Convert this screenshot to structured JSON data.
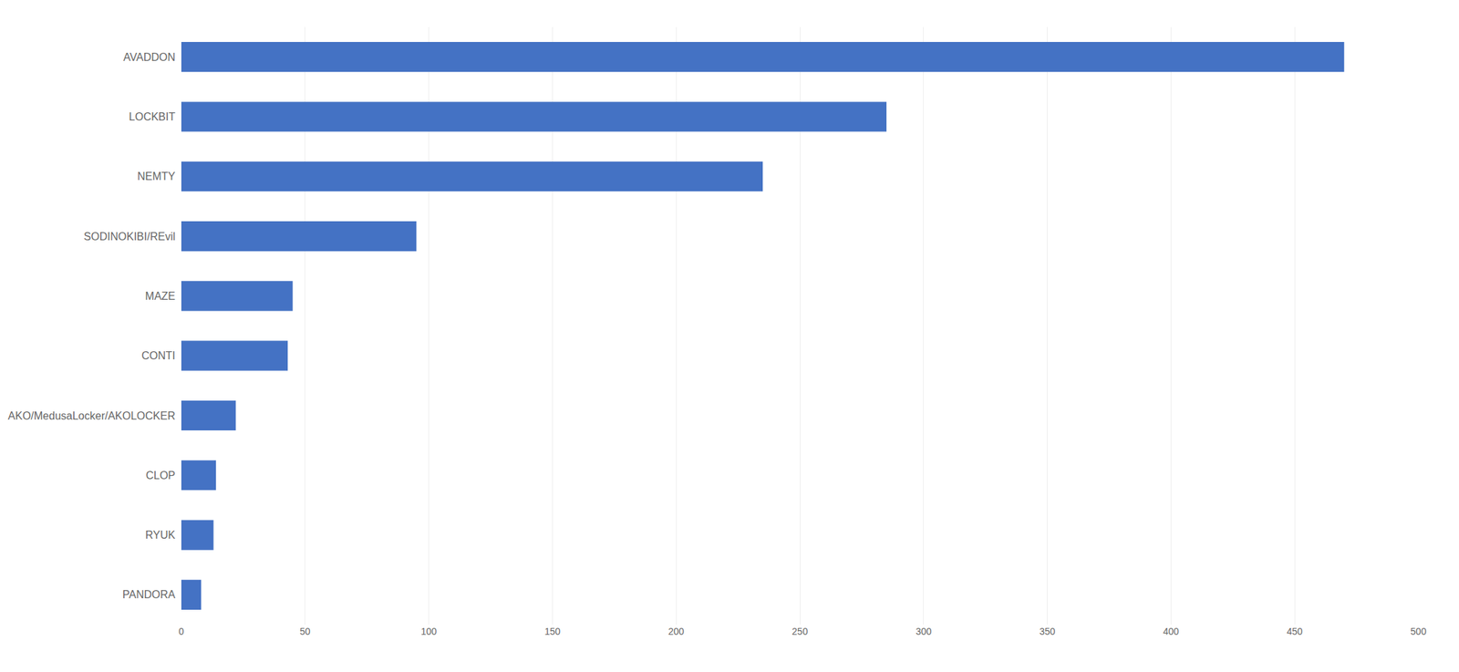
{
  "chart_data": {
    "type": "bar",
    "orientation": "horizontal",
    "categories": [
      "PANDORA",
      "RYUK",
      "CLOP",
      "AKO/MedusaLocker/AKOLOCKER",
      "CONTI",
      "MAZE",
      "SODINOKIBI/REvil",
      "NEMTY",
      "LOCKBIT",
      "AVADDON"
    ],
    "values": [
      8,
      13,
      14,
      22,
      43,
      45,
      95,
      235,
      285,
      470
    ],
    "color": "#4472C4",
    "xlim": [
      0,
      500
    ],
    "xticks": [
      0,
      50,
      100,
      150,
      200,
      250,
      300,
      350,
      400,
      450,
      500
    ],
    "grid": true
  }
}
